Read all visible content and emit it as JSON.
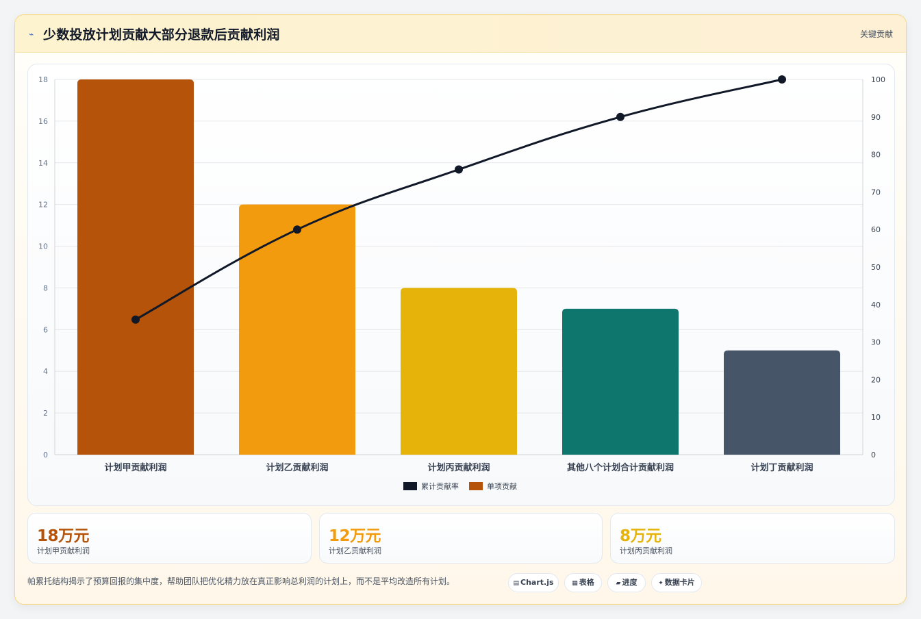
{
  "header": {
    "icon": "lightning-icon",
    "title": "少数投放计划贡献大部分退款后贡献利润",
    "badge": "关键贡献"
  },
  "chart_data": {
    "type": "bar",
    "categories": [
      "计划甲贡献利润",
      "计划乙贡献利润",
      "计划丙贡献利润",
      "其他八个计划合计贡献利润",
      "计划丁贡献利润"
    ],
    "series": [
      {
        "name": "单项贡献",
        "type": "bar",
        "axis": "left",
        "values": [
          18,
          12,
          8,
          7,
          5
        ],
        "colors": [
          "#b45309",
          "#f29b0e",
          "#e6b30b",
          "#0f766e",
          "#475569"
        ]
      },
      {
        "name": "累计贡献率",
        "type": "line",
        "axis": "right",
        "values": [
          36,
          60,
          76,
          90,
          100
        ],
        "color": "#111827"
      }
    ],
    "ylim": [
      0,
      18
    ],
    "yticks": [
      "0",
      "2",
      "4",
      "6",
      "8",
      "10",
      "12",
      "14",
      "16",
      "18"
    ],
    "y2lim": [
      0,
      100
    ],
    "y2ticks": [
      "0",
      "10",
      "20",
      "30",
      "40",
      "50",
      "60",
      "70",
      "80",
      "90",
      "100"
    ],
    "legend": [
      {
        "label": "累计贡献率",
        "color": "#111827"
      },
      {
        "label": "单项贡献",
        "color": "#b45309"
      }
    ],
    "legend_position": "bottom",
    "grid": true
  },
  "stats": [
    {
      "value": "18万元",
      "label": "计划甲贡献利润",
      "color": "#b45309"
    },
    {
      "value": "12万元",
      "label": "计划乙贡献利润",
      "color": "#f29b0e"
    },
    {
      "value": "8万元",
      "label": "计划丙贡献利润",
      "color": "#e6b30b"
    }
  ],
  "footer": {
    "text": "帕累托结构揭示了预算回报的集中度，帮助团队把优化精力放在真正影响总利润的计划上，而不是平均改造所有计划。",
    "tags": [
      {
        "icon": "chart-icon",
        "glyph": "▤",
        "label": "Chart.js"
      },
      {
        "icon": "table-icon",
        "glyph": "▦",
        "label": "表格"
      },
      {
        "icon": "progress-icon",
        "glyph": "▰",
        "label": "进度"
      },
      {
        "icon": "datacard-icon",
        "glyph": "✦",
        "label": "数据卡片"
      }
    ]
  }
}
